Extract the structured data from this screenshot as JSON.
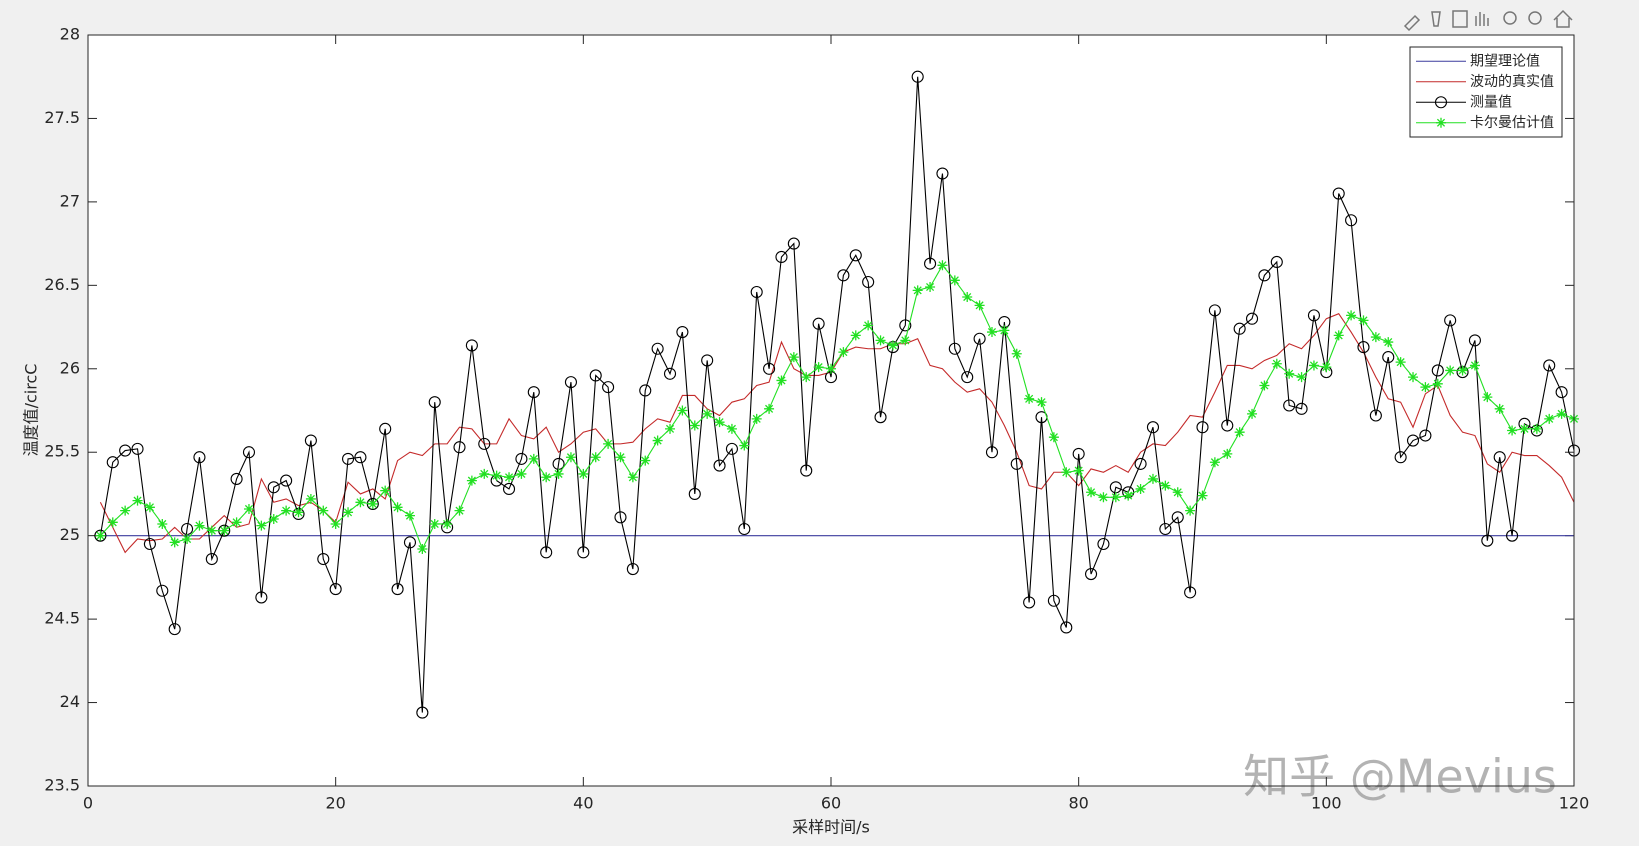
{
  "chart_data": {
    "type": "line",
    "xlabel": "采样时间/s",
    "ylabel": "温度值/circC",
    "watermark": "知乎 @Mevius",
    "x": [
      1,
      2,
      3,
      4,
      5,
      6,
      7,
      8,
      9,
      10,
      11,
      12,
      13,
      14,
      15,
      16,
      17,
      18,
      19,
      20,
      21,
      22,
      23,
      24,
      25,
      26,
      27,
      28,
      29,
      30,
      31,
      32,
      33,
      34,
      35,
      36,
      37,
      38,
      39,
      40,
      41,
      42,
      43,
      44,
      45,
      46,
      47,
      48,
      49,
      50,
      51,
      52,
      53,
      54,
      55,
      56,
      57,
      58,
      59,
      60,
      61,
      62,
      63,
      64,
      65,
      66,
      67,
      68,
      69,
      70,
      71,
      72,
      73,
      74,
      75,
      76,
      77,
      78,
      79,
      80,
      81,
      82,
      83,
      84,
      85,
      86,
      87,
      88,
      89,
      90,
      91,
      92,
      93,
      94,
      95,
      96,
      97,
      98,
      99,
      100,
      101,
      102,
      103,
      104,
      105,
      106,
      107,
      108,
      109,
      110,
      111,
      112,
      113,
      114,
      115,
      116,
      117,
      118,
      119,
      120
    ],
    "series": [
      {
        "name": "期望理论值",
        "color": "#3b3b9e",
        "marker": "none",
        "values": [
          25,
          25,
          25,
          25,
          25,
          25,
          25,
          25,
          25,
          25,
          25,
          25,
          25,
          25,
          25,
          25,
          25,
          25,
          25,
          25,
          25,
          25,
          25,
          25,
          25,
          25,
          25,
          25,
          25,
          25,
          25,
          25,
          25,
          25,
          25,
          25,
          25,
          25,
          25,
          25,
          25,
          25,
          25,
          25,
          25,
          25,
          25,
          25,
          25,
          25,
          25,
          25,
          25,
          25,
          25,
          25,
          25,
          25,
          25,
          25,
          25,
          25,
          25,
          25,
          25,
          25,
          25,
          25,
          25,
          25,
          25,
          25,
          25,
          25,
          25,
          25,
          25,
          25,
          25,
          25,
          25,
          25,
          25,
          25,
          25,
          25,
          25,
          25,
          25,
          25,
          25,
          25,
          25,
          25,
          25,
          25,
          25,
          25,
          25,
          25,
          25,
          25,
          25,
          25,
          25,
          25,
          25,
          25,
          25,
          25,
          25,
          25,
          25,
          25,
          25,
          25,
          25,
          25,
          25,
          25
        ]
      },
      {
        "name": "波动的真实值",
        "color": "#c42a2a",
        "marker": "none",
        "values": [
          25.2,
          25.05,
          24.9,
          24.98,
          24.97,
          24.98,
          25.05,
          24.98,
          24.98,
          25.05,
          25.12,
          25.05,
          25.07,
          25.34,
          25.2,
          25.22,
          25.18,
          25.2,
          25.15,
          25.08,
          25.32,
          25.25,
          25.28,
          25.22,
          25.45,
          25.5,
          25.48,
          25.55,
          25.55,
          25.65,
          25.64,
          25.55,
          25.55,
          25.7,
          25.6,
          25.58,
          25.65,
          25.5,
          25.55,
          25.62,
          25.64,
          25.55,
          25.55,
          25.56,
          25.64,
          25.7,
          25.68,
          25.84,
          25.84,
          25.76,
          25.72,
          25.8,
          25.82,
          25.9,
          25.92,
          26.16,
          26.0,
          25.96,
          25.96,
          25.98,
          26.1,
          26.13,
          26.12,
          26.12,
          26.15,
          26.15,
          26.18,
          26.02,
          26.0,
          25.92,
          25.86,
          25.88,
          25.8,
          25.66,
          25.5,
          25.3,
          25.28,
          25.38,
          25.38,
          25.3,
          25.4,
          25.38,
          25.42,
          25.38,
          25.5,
          25.55,
          25.54,
          25.62,
          25.72,
          25.71,
          25.86,
          26.02,
          26.02,
          26.0,
          26.05,
          26.08,
          26.15,
          26.12,
          26.2,
          26.3,
          26.33,
          26.22,
          26.1,
          25.95,
          25.82,
          25.8,
          25.65,
          25.85,
          25.9,
          25.72,
          25.62,
          25.6,
          25.43,
          25.38,
          25.5,
          25.48,
          25.48,
          25.42,
          25.35,
          25.2
        ]
      },
      {
        "name": "测量值",
        "color": "#000000",
        "marker": "o",
        "values": [
          25.0,
          25.44,
          25.51,
          25.52,
          24.95,
          24.67,
          24.44,
          25.04,
          25.47,
          24.86,
          25.03,
          25.34,
          25.5,
          24.63,
          25.29,
          25.33,
          25.13,
          25.57,
          24.86,
          24.68,
          25.46,
          25.47,
          25.19,
          25.64,
          24.68,
          24.96,
          23.94,
          25.8,
          25.05,
          25.53,
          26.14,
          25.55,
          25.33,
          25.28,
          25.46,
          25.86,
          24.9,
          25.43,
          25.92,
          24.9,
          25.96,
          25.89,
          25.11,
          24.8,
          25.87,
          26.12,
          25.97,
          26.22,
          25.25,
          26.05,
          25.42,
          25.52,
          25.04,
          26.46,
          26.0,
          26.67,
          26.75,
          25.39,
          26.27,
          25.95,
          26.56,
          26.68,
          26.52,
          25.71,
          26.13,
          26.26,
          27.75,
          26.63,
          27.17,
          26.12,
          25.95,
          26.18,
          25.5,
          26.28,
          25.43,
          24.6,
          25.71,
          24.61,
          24.45,
          25.49,
          24.77,
          24.95,
          25.29,
          25.26,
          25.43,
          25.65,
          25.04,
          25.11,
          24.66,
          25.65,
          26.35,
          25.66,
          26.24,
          26.3,
          26.56,
          26.64,
          25.78,
          25.76,
          26.32,
          25.98,
          27.05,
          26.89,
          26.13,
          25.72,
          26.07,
          25.47,
          25.57,
          25.6,
          25.99,
          26.29,
          25.98,
          26.17,
          24.97,
          25.47,
          25.0,
          25.67,
          25.63,
          26.02,
          25.86,
          25.51
        ]
      },
      {
        "name": "卡尔曼估计值",
        "color": "#22e022",
        "marker": "*",
        "values": [
          25.0,
          25.08,
          25.15,
          25.21,
          25.17,
          25.07,
          24.96,
          24.98,
          25.06,
          25.03,
          25.03,
          25.08,
          25.16,
          25.06,
          25.1,
          25.15,
          25.14,
          25.22,
          25.15,
          25.07,
          25.14,
          25.2,
          25.19,
          25.27,
          25.17,
          25.12,
          24.92,
          25.07,
          25.07,
          25.15,
          25.33,
          25.37,
          25.36,
          25.35,
          25.37,
          25.46,
          25.35,
          25.37,
          25.47,
          25.37,
          25.47,
          25.55,
          25.47,
          25.35,
          25.45,
          25.57,
          25.64,
          25.75,
          25.66,
          25.73,
          25.68,
          25.64,
          25.54,
          25.7,
          25.76,
          25.93,
          26.07,
          25.95,
          26.01,
          26.0,
          26.1,
          26.2,
          26.26,
          26.17,
          26.14,
          26.17,
          26.47,
          26.49,
          26.62,
          26.53,
          26.43,
          26.38,
          26.22,
          26.23,
          26.09,
          25.82,
          25.8,
          25.59,
          25.38,
          25.39,
          25.26,
          25.23,
          25.23,
          25.24,
          25.28,
          25.34,
          25.3,
          25.26,
          25.15,
          25.24,
          25.44,
          25.49,
          25.62,
          25.73,
          25.9,
          26.03,
          25.97,
          25.95,
          26.02,
          26.01,
          26.2,
          26.32,
          26.29,
          26.19,
          26.16,
          26.04,
          25.95,
          25.89,
          25.91,
          25.99,
          25.99,
          26.02,
          25.83,
          25.76,
          25.63,
          25.64,
          25.64,
          25.7,
          25.73,
          25.7
        ]
      }
    ],
    "xlim": [
      0,
      120
    ],
    "xticks": [
      0,
      20,
      40,
      60,
      80,
      100,
      120
    ],
    "ylim": [
      23.5,
      28
    ],
    "yticks": [
      23.5,
      24,
      24.5,
      25,
      25.5,
      26,
      26.5,
      27,
      27.5,
      28
    ],
    "legend": "northeast",
    "grid": false
  }
}
